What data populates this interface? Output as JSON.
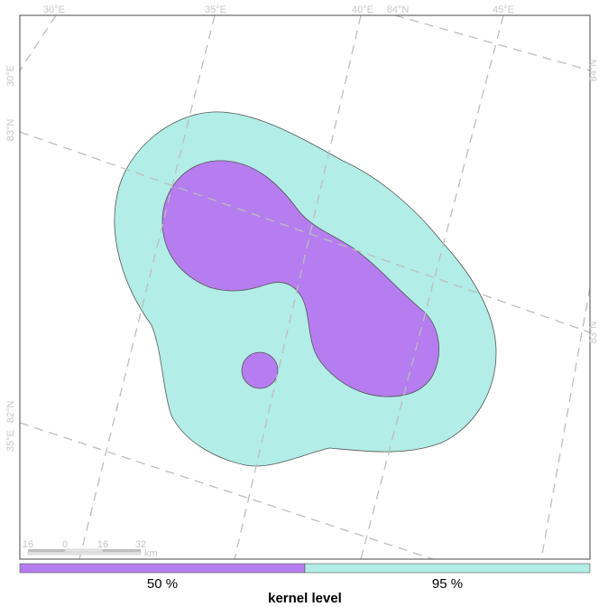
{
  "graticule": {
    "top_labels": [
      "30°E",
      "35°E",
      "40°E",
      "84°N",
      "45°E"
    ],
    "left_labels": [
      "30°E",
      "83°N",
      "82°N",
      "35°E"
    ],
    "right_labels": [
      "84°N",
      "83°N"
    ]
  },
  "kernel": {
    "levels": [
      {
        "label": "50 %",
        "color": "#b57def"
      },
      {
        "label": "95 %",
        "color": "#b2ede7"
      }
    ]
  },
  "legend": {
    "title": "kernel level"
  },
  "scale_bar": {
    "ticks": [
      "16",
      "0",
      "16",
      "32"
    ],
    "unit": "km"
  }
}
